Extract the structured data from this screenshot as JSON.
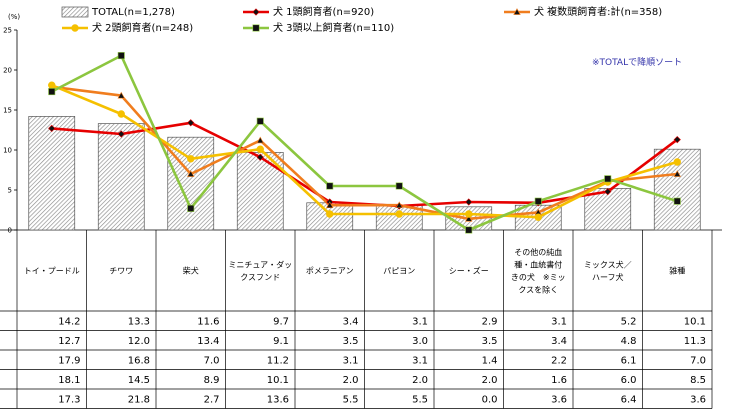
{
  "chart_data": {
    "type": "bar+line",
    "unit_label": "(%)",
    "note": "※TOTALで降順ソート",
    "ylim": [
      0,
      25
    ],
    "yticks": [
      "0",
      "5",
      "10",
      "15",
      "20",
      "25"
    ],
    "categories": [
      [
        "トイ・プードル"
      ],
      [
        "チワワ"
      ],
      [
        "柴犬"
      ],
      [
        "ミニチュア・ダッ",
        "クスフンド"
      ],
      [
        "ポメラニアン"
      ],
      [
        "パピヨン"
      ],
      [
        "シー・ズー"
      ],
      [
        "その他の純血",
        "種・血統書付",
        "きの犬　※ミッ",
        "クスを除く"
      ],
      [
        "ミックス犬／",
        "ハーフ犬"
      ],
      [
        "雑種"
      ]
    ],
    "series": [
      {
        "name": "TOTAL(n=1,278)",
        "kind": "bar",
        "values": [
          14.2,
          13.3,
          11.6,
          9.7,
          3.4,
          3.1,
          2.9,
          3.1,
          5.2,
          10.1
        ],
        "labels": [
          "14.2",
          "13.3",
          "11.6",
          "9.7",
          "3.4",
          "3.1",
          "2.9",
          "3.1",
          "5.2",
          "10.1"
        ]
      },
      {
        "name": "犬 1頭飼育者(n=920)",
        "kind": "line",
        "color": "#e60000",
        "marker": "diamond",
        "values": [
          12.7,
          12.0,
          13.4,
          9.1,
          3.5,
          3.0,
          3.5,
          3.4,
          4.8,
          11.3
        ],
        "labels": [
          "12.7",
          "12.0",
          "13.4",
          "9.1",
          "3.5",
          "3.0",
          "3.5",
          "3.4",
          "4.8",
          "11.3"
        ]
      },
      {
        "name": "犬 複数頭飼育者:計(n=358)",
        "kind": "line",
        "color": "#f07d1e",
        "marker": "triangle",
        "values": [
          17.9,
          16.8,
          7.0,
          11.2,
          3.1,
          3.1,
          1.4,
          2.2,
          6.1,
          7.0
        ],
        "labels": [
          "17.9",
          "16.8",
          "7.0",
          "11.2",
          "3.1",
          "3.1",
          "1.4",
          "2.2",
          "6.1",
          "7.0"
        ]
      },
      {
        "name": "犬 2頭飼育者(n=248)",
        "kind": "line",
        "color": "#f5c000",
        "marker": "circle",
        "values": [
          18.1,
          14.5,
          8.9,
          10.1,
          2.0,
          2.0,
          2.0,
          1.6,
          6.0,
          8.5
        ],
        "labels": [
          "18.1",
          "14.5",
          "8.9",
          "10.1",
          "2.0",
          "2.0",
          "2.0",
          "1.6",
          "6.0",
          "8.5"
        ]
      },
      {
        "name": "犬 3頭以上飼育者(n=110)",
        "kind": "line",
        "color": "#8cc63f",
        "marker": "square",
        "values": [
          17.3,
          21.8,
          2.7,
          13.6,
          5.5,
          5.5,
          0.0,
          3.6,
          6.4,
          3.6
        ],
        "labels": [
          "17.3",
          "21.8",
          "2.7",
          "13.6",
          "5.5",
          "5.5",
          "0.0",
          "3.6",
          "6.4",
          "3.6"
        ]
      }
    ]
  }
}
